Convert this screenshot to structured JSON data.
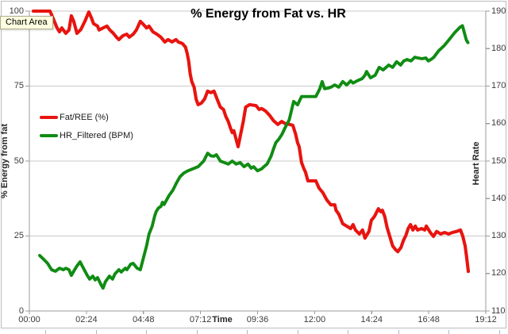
{
  "window": {
    "tooltip": "Chart Area"
  },
  "chart_data": {
    "type": "line",
    "title": "% Energy from Fat vs. HR",
    "legend_position": "left-middle",
    "grid": "horizontal",
    "colors": {
      "grid": "#c9c9c9",
      "axis": "#9b9b9b",
      "tick_text": "#3b3b3b"
    },
    "x_axis": {
      "title": "Time",
      "tick_labels": [
        "00:00",
        "02:24",
        "04:48",
        "07:12",
        "09:36",
        "12:00",
        "14:24",
        "16:48",
        "19:12"
      ],
      "tick_minutes": [
        0,
        144,
        288,
        432,
        576,
        720,
        864,
        1008,
        1152
      ],
      "range_minutes": [
        0,
        1152
      ]
    },
    "y_left": {
      "title": "% Energy from fat",
      "ticks": [
        0,
        25,
        50,
        75,
        100
      ],
      "range": [
        0,
        100
      ]
    },
    "y_right": {
      "title": "Heart Rate",
      "ticks": [
        110,
        120,
        130,
        140,
        150,
        160,
        170,
        180,
        190
      ],
      "range": [
        110,
        190
      ]
    },
    "legend": [
      {
        "label": "Fat/REE (%)",
        "color": "#e8140f"
      },
      {
        "label": "HR_Filtered (BPM)",
        "color": "#108c13"
      }
    ],
    "series": [
      {
        "name": "Fat/REE (%)",
        "axis": "left",
        "color": "#e8140f",
        "width": 4.1,
        "points": [
          [
            10,
            100
          ],
          [
            52,
            100
          ],
          [
            60,
            97.6
          ],
          [
            70,
            94.4
          ],
          [
            76,
            93.1
          ],
          [
            82,
            94.4
          ],
          [
            92,
            92.6
          ],
          [
            100,
            93.7
          ],
          [
            106,
            98.4
          ],
          [
            112,
            96.6
          ],
          [
            120,
            92.6
          ],
          [
            130,
            93.9
          ],
          [
            140,
            96.6
          ],
          [
            150,
            99.7
          ],
          [
            156,
            97.9
          ],
          [
            162,
            95.8
          ],
          [
            172,
            95.0
          ],
          [
            176,
            93.7
          ],
          [
            186,
            94.4
          ],
          [
            196,
            95.0
          ],
          [
            202,
            93.9
          ],
          [
            212,
            92.6
          ],
          [
            220,
            91.3
          ],
          [
            226,
            90.5
          ],
          [
            236,
            91.8
          ],
          [
            246,
            92.3
          ],
          [
            252,
            91.3
          ],
          [
            262,
            92.3
          ],
          [
            270,
            93.7
          ],
          [
            280,
            96.6
          ],
          [
            286,
            95.8
          ],
          [
            296,
            94.4
          ],
          [
            302,
            95.0
          ],
          [
            312,
            93.1
          ],
          [
            322,
            92.3
          ],
          [
            332,
            91.3
          ],
          [
            342,
            89.7
          ],
          [
            350,
            90.5
          ],
          [
            360,
            89.7
          ],
          [
            370,
            90.5
          ],
          [
            376,
            89.7
          ],
          [
            386,
            89.2
          ],
          [
            394,
            88.0
          ],
          [
            398,
            86.0
          ],
          [
            402,
            83.3
          ],
          [
            406,
            79.1
          ],
          [
            410,
            76.5
          ],
          [
            416,
            74.6
          ],
          [
            421,
            70.6
          ],
          [
            426,
            68.8
          ],
          [
            434,
            69.3
          ],
          [
            442,
            70.6
          ],
          [
            450,
            73.3
          ],
          [
            458,
            72.8
          ],
          [
            466,
            73.3
          ],
          [
            474,
            70.6
          ],
          [
            482,
            68.0
          ],
          [
            490,
            67.2
          ],
          [
            496,
            64.8
          ],
          [
            502,
            63.2
          ],
          [
            508,
            60.8
          ],
          [
            512,
            59.5
          ],
          [
            516,
            60.1
          ],
          [
            520,
            58.2
          ],
          [
            527,
            54.8
          ],
          [
            533,
            58.7
          ],
          [
            540,
            63.2
          ],
          [
            546,
            68.0
          ],
          [
            556,
            68.8
          ],
          [
            572,
            68.5
          ],
          [
            580,
            67.2
          ],
          [
            586,
            67.5
          ],
          [
            596,
            66.7
          ],
          [
            606,
            65.3
          ],
          [
            616,
            63.5
          ],
          [
            627,
            62.2
          ],
          [
            637,
            63.2
          ],
          [
            647,
            62.4
          ],
          [
            658,
            62.2
          ],
          [
            665,
            61.9
          ],
          [
            672,
            59.0
          ],
          [
            677,
            56.1
          ],
          [
            681,
            54.8
          ],
          [
            687,
            49.5
          ],
          [
            693,
            47.4
          ],
          [
            697,
            46.3
          ],
          [
            703,
            43.4
          ],
          [
            723,
            43.4
          ],
          [
            731,
            41.0
          ],
          [
            741,
            39.4
          ],
          [
            751,
            37.0
          ],
          [
            761,
            35.4
          ],
          [
            771,
            35.4
          ],
          [
            774,
            33.6
          ],
          [
            781,
            32.3
          ],
          [
            791,
            29.1
          ],
          [
            801,
            28.3
          ],
          [
            811,
            27.5
          ],
          [
            817,
            28.8
          ],
          [
            823,
            27.0
          ],
          [
            833,
            25.7
          ],
          [
            841,
            27.0
          ],
          [
            847,
            24.3
          ],
          [
            857,
            26.5
          ],
          [
            863,
            30.2
          ],
          [
            871,
            31.5
          ],
          [
            881,
            34.1
          ],
          [
            887,
            33.1
          ],
          [
            891,
            33.6
          ],
          [
            897,
            31.5
          ],
          [
            903,
            27.8
          ],
          [
            911,
            24.3
          ],
          [
            917,
            21.7
          ],
          [
            924,
            20.5
          ],
          [
            930,
            19.8
          ],
          [
            938,
            21.2
          ],
          [
            944,
            23.5
          ],
          [
            950,
            25.1
          ],
          [
            956,
            27.5
          ],
          [
            962,
            28.8
          ],
          [
            968,
            27.0
          ],
          [
            974,
            28.3
          ],
          [
            980,
            27.0
          ],
          [
            990,
            27.5
          ],
          [
            998,
            27.0
          ],
          [
            1002,
            28.3
          ],
          [
            1012,
            26.2
          ],
          [
            1020,
            24.9
          ],
          [
            1028,
            26.5
          ],
          [
            1038,
            25.7
          ],
          [
            1048,
            26.2
          ],
          [
            1058,
            25.7
          ],
          [
            1068,
            26.2
          ],
          [
            1078,
            26.5
          ],
          [
            1088,
            27.0
          ],
          [
            1094,
            24.9
          ],
          [
            1100,
            21.7
          ],
          [
            1104,
            17.7
          ],
          [
            1108,
            13.2
          ]
        ]
      },
      {
        "name": "HR_Filtered (BPM)",
        "axis": "right",
        "color": "#108c13",
        "width": 3.9,
        "points": [
          [
            26,
            124.8
          ],
          [
            36,
            123.8
          ],
          [
            46,
            122.7
          ],
          [
            56,
            121.0
          ],
          [
            66,
            120.6
          ],
          [
            76,
            121.4
          ],
          [
            86,
            121.0
          ],
          [
            92,
            121.4
          ],
          [
            100,
            121.0
          ],
          [
            106,
            119.5
          ],
          [
            112,
            120.6
          ],
          [
            120,
            122.0
          ],
          [
            128,
            123.1
          ],
          [
            136,
            121.5
          ],
          [
            146,
            119.5
          ],
          [
            152,
            118.5
          ],
          [
            160,
            119.3
          ],
          [
            166,
            118.3
          ],
          [
            172,
            118.9
          ],
          [
            182,
            116.8
          ],
          [
            186,
            116.1
          ],
          [
            192,
            117.8
          ],
          [
            202,
            119.3
          ],
          [
            210,
            118.5
          ],
          [
            216,
            119.9
          ],
          [
            226,
            121.0
          ],
          [
            232,
            120.4
          ],
          [
            242,
            121.4
          ],
          [
            246,
            121.0
          ],
          [
            256,
            122.5
          ],
          [
            262,
            122.7
          ],
          [
            272,
            121.4
          ],
          [
            280,
            121.0
          ],
          [
            296,
            127.4
          ],
          [
            302,
            130.5
          ],
          [
            310,
            132.6
          ],
          [
            316,
            135.2
          ],
          [
            320,
            136.5
          ],
          [
            326,
            137.5
          ],
          [
            332,
            137.9
          ],
          [
            336,
            139.0
          ],
          [
            340,
            138.4
          ],
          [
            352,
            140.7
          ],
          [
            362,
            142.2
          ],
          [
            372,
            144.3
          ],
          [
            380,
            145.8
          ],
          [
            390,
            146.8
          ],
          [
            400,
            147.4
          ],
          [
            412,
            147.9
          ],
          [
            426,
            148.5
          ],
          [
            440,
            150.0
          ],
          [
            450,
            152.1
          ],
          [
            458,
            151.4
          ],
          [
            466,
            151.3
          ],
          [
            472,
            151.7
          ],
          [
            482,
            150.0
          ],
          [
            492,
            149.6
          ],
          [
            502,
            149.2
          ],
          [
            512,
            150.0
          ],
          [
            522,
            149.2
          ],
          [
            532,
            149.6
          ],
          [
            542,
            148.5
          ],
          [
            552,
            149.2
          ],
          [
            560,
            148.1
          ],
          [
            566,
            148.5
          ],
          [
            576,
            147.4
          ],
          [
            586,
            147.9
          ],
          [
            592,
            148.5
          ],
          [
            600,
            149.2
          ],
          [
            610,
            151.3
          ],
          [
            616,
            153.2
          ],
          [
            622,
            154.9
          ],
          [
            630,
            155.9
          ],
          [
            638,
            157.2
          ],
          [
            646,
            159.0
          ],
          [
            656,
            161.0
          ],
          [
            667,
            165.9
          ],
          [
            677,
            165.0
          ],
          [
            687,
            167.2
          ],
          [
            705,
            167.2
          ],
          [
            723,
            167.2
          ],
          [
            727,
            168.0
          ],
          [
            733,
            169.3
          ],
          [
            739,
            171.2
          ],
          [
            745,
            169.3
          ],
          [
            755,
            169.5
          ],
          [
            761,
            169.7
          ],
          [
            771,
            170.3
          ],
          [
            781,
            169.7
          ],
          [
            791,
            171.2
          ],
          [
            801,
            170.3
          ],
          [
            811,
            171.4
          ],
          [
            817,
            170.8
          ],
          [
            827,
            171.4
          ],
          [
            840,
            172.0
          ],
          [
            847,
            172.9
          ],
          [
            851,
            173.9
          ],
          [
            861,
            172.2
          ],
          [
            873,
            172.9
          ],
          [
            883,
            175.0
          ],
          [
            893,
            174.3
          ],
          [
            907,
            175.6
          ],
          [
            917,
            175.0
          ],
          [
            927,
            176.5
          ],
          [
            937,
            175.6
          ],
          [
            945,
            176.7
          ],
          [
            953,
            177.1
          ],
          [
            963,
            176.7
          ],
          [
            973,
            177.7
          ],
          [
            981,
            177.5
          ],
          [
            991,
            177.3
          ],
          [
            1001,
            177.5
          ],
          [
            1007,
            176.7
          ],
          [
            1015,
            177.2
          ],
          [
            1021,
            177.7
          ],
          [
            1033,
            179.4
          ],
          [
            1047,
            180.8
          ],
          [
            1061,
            182.6
          ],
          [
            1073,
            184.2
          ],
          [
            1087,
            185.7
          ],
          [
            1093,
            186.1
          ],
          [
            1103,
            182.3
          ],
          [
            1107,
            181.6
          ]
        ]
      }
    ]
  }
}
